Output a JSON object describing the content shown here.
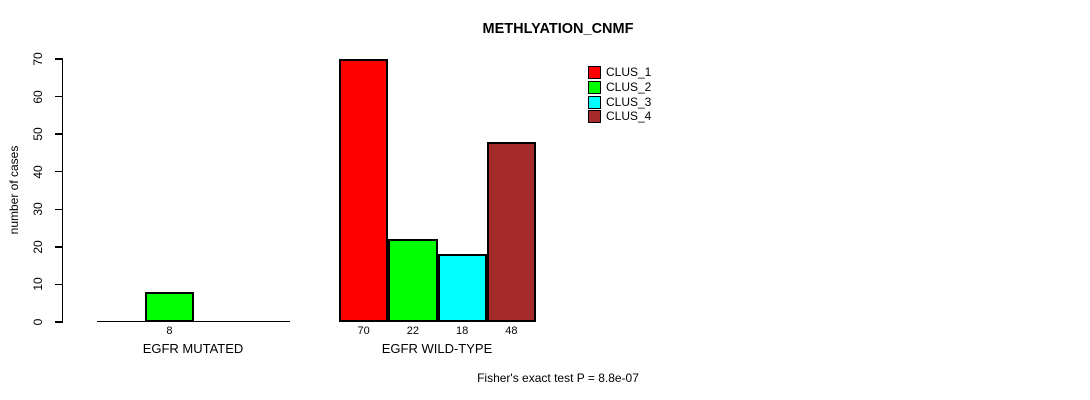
{
  "chart_data": {
    "type": "bar",
    "title": "METHLYATION_CNMF",
    "ylabel": "number of cases",
    "xlabel": "",
    "ylim": [
      0,
      70
    ],
    "yticks": [
      0,
      10,
      20,
      30,
      40,
      50,
      60,
      70
    ],
    "grid": false,
    "legend_position": "top-right",
    "groups": [
      "EGFR MUTATED",
      "EGFR WILD-TYPE"
    ],
    "series": [
      {
        "name": "CLUS_1",
        "color": "#ff0000",
        "values": [
          0,
          70
        ]
      },
      {
        "name": "CLUS_2",
        "color": "#00ff00",
        "values": [
          8,
          22
        ]
      },
      {
        "name": "CLUS_3",
        "color": "#00ffff",
        "values": [
          0,
          18
        ]
      },
      {
        "name": "CLUS_4",
        "color": "#a52a2a",
        "values": [
          0,
          48
        ]
      }
    ],
    "visible_bar_value_labels": [
      "8",
      "70",
      "22",
      "18",
      "48"
    ],
    "annotation": "Fisher's exact test P = 8.8e-07"
  }
}
